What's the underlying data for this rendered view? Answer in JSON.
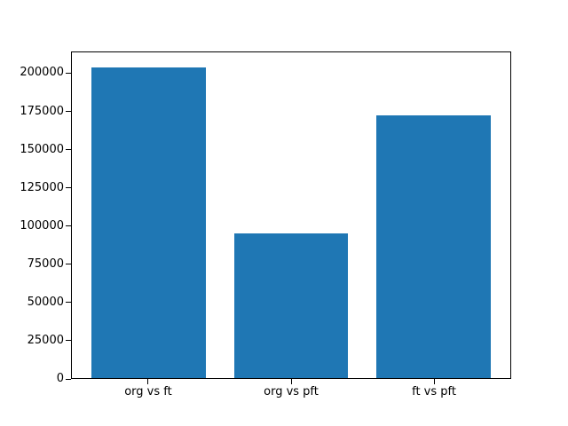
{
  "chart_data": {
    "type": "bar",
    "title": "",
    "xlabel": "",
    "ylabel": "",
    "categories": [
      "org vs ft",
      "org vs pft",
      "ft vs pft"
    ],
    "values": [
      204000,
      95000,
      173000
    ],
    "ylim": [
      0,
      214200
    ],
    "yticks": [
      0,
      25000,
      50000,
      75000,
      100000,
      125000,
      150000,
      175000,
      200000
    ],
    "bar_color": "#1f77b4",
    "grid": false,
    "legend": "none"
  }
}
